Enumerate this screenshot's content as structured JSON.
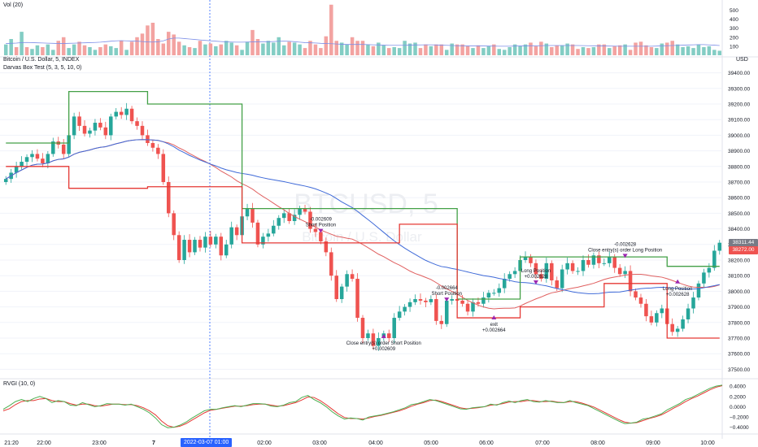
{
  "panes": {
    "volume_title": "Vol (20)",
    "main_title": "Bitcoin / U.S. Dollar, 5, INDEX",
    "study_title": "Darvas Box Test (5, 3, 5, 10, 0)",
    "rvgi_title": "RVGI (10, 0)",
    "currency": "USD"
  },
  "watermark": {
    "symbol": "BTCUSD, 5",
    "name": "Bitcoin / U.S. Dollar"
  },
  "time_axis": {
    "labels": [
      "21:20",
      "22:00",
      "23:00",
      "7",
      "02:00",
      "03:00",
      "04:00",
      "05:00",
      "06:00",
      "07:00",
      "08:00",
      "09:00",
      "10:00"
    ],
    "crosshair_label": "2022-03-07   01:00"
  },
  "price_axis": {
    "ticks": [
      "39400.00",
      "39300.00",
      "39200.00",
      "39100.00",
      "39000.00",
      "38900.00",
      "38800.00",
      "38700.00",
      "38600.00",
      "38500.00",
      "38400.00",
      "38300.00",
      "38200.00",
      "38100.00",
      "38000.00",
      "37900.00",
      "37800.00",
      "37700.00",
      "37600.00",
      "37500.00"
    ],
    "badge_red": "38272.00",
    "badge_gray": "38311.44"
  },
  "volume_axis": {
    "ticks": [
      "500",
      "400",
      "300",
      "200",
      "100"
    ]
  },
  "rvgi_axis": {
    "ticks": [
      "0.4000",
      "0.2000",
      "0.0000",
      "−0.2000",
      "−0.4000"
    ]
  },
  "colors": {
    "up": "#26a69a",
    "down": "#ef5350",
    "vol_up": "#83cdc4",
    "vol_down": "#f3a3a1",
    "box_top": "#43a047",
    "box_bottom": "#e53935",
    "ma_blue": "#3f6ad8",
    "ma_red": "#e06060",
    "rvgi_green": "#4caf50",
    "rvgi_red": "#e53935",
    "crosshair": "#2962ff",
    "signal_marker": "#9c27b0",
    "badge_gray": "#787b86"
  },
  "chart_data": [
    {
      "type": "candlestick",
      "title": "Bitcoin / U.S. Dollar, 5, INDEX",
      "ylim": [
        37450,
        39450
      ],
      "close_series": [
        38720,
        38760,
        38800,
        38830,
        38860,
        38880,
        38850,
        38820,
        38880,
        38960,
        38940,
        38880,
        39000,
        39120,
        39060,
        39010,
        39030,
        39080,
        39050,
        39000,
        39120,
        39150,
        39130,
        39170,
        39090,
        39060,
        39000,
        38950,
        38920,
        38880,
        38700,
        38500,
        38360,
        38200,
        38330,
        38250,
        38330,
        38280,
        38350,
        38300,
        38350,
        38230,
        38300,
        38410,
        38360,
        38480,
        38530,
        38440,
        38300,
        38350,
        38370,
        38420,
        38470,
        38500,
        38450,
        38490,
        38530,
        38510,
        38400,
        38380,
        38320,
        38250,
        38100,
        37950,
        38030,
        38110,
        38080,
        37830,
        37700,
        37730,
        37650,
        37700,
        37730,
        37700,
        37830,
        37870,
        37900,
        37930,
        37950,
        37940,
        37930,
        37950,
        37810,
        37790,
        37940,
        37950,
        37940,
        37920,
        37870,
        37930,
        37920,
        37960,
        37990,
        37990,
        38020,
        38080,
        38110,
        38130,
        38200,
        38220,
        38180,
        38110,
        38080,
        38180,
        38070,
        38020,
        38140,
        38180,
        38130,
        38130,
        38200,
        38170,
        38230,
        38180,
        38180,
        38220,
        38150,
        38110,
        38130,
        38000,
        37960,
        37920,
        37840,
        37800,
        37860,
        37890,
        37790,
        37740,
        37760,
        37820,
        37890,
        37960,
        38050,
        38120,
        38150,
        38260,
        38311
      ]
    },
    {
      "type": "bar",
      "title": "Vol (20)",
      "ylim": [
        0,
        540
      ],
      "values": [
        120,
        180,
        90,
        260,
        90,
        70,
        110,
        90,
        120,
        60,
        160,
        200,
        80,
        120,
        150,
        110,
        90,
        60,
        90,
        120,
        100,
        80,
        160,
        60,
        150,
        200,
        240,
        330,
        360,
        180,
        130,
        260,
        230,
        150,
        110,
        90,
        80,
        160,
        120,
        130,
        100,
        120,
        160,
        140,
        110,
        60,
        150,
        280,
        180,
        130,
        160,
        140,
        200,
        110,
        150,
        140,
        120,
        80,
        160,
        120,
        80,
        210,
        560,
        160,
        140,
        120,
        200,
        160,
        160,
        120,
        100,
        140,
        110,
        80,
        90,
        80,
        160,
        130,
        140,
        80,
        120,
        100,
        120,
        120,
        60,
        130,
        120,
        120,
        100,
        80,
        110,
        80,
        100,
        120,
        70,
        60,
        90,
        120,
        100,
        120,
        140,
        100,
        150,
        130,
        90,
        110,
        110,
        130,
        120,
        70,
        90,
        80,
        90,
        120,
        120,
        80,
        100,
        110,
        120,
        60,
        140,
        150,
        110,
        90,
        80,
        130,
        140,
        160,
        120,
        90,
        100,
        80,
        120,
        90,
        100,
        60,
        50
      ],
      "up": [
        1,
        1,
        0,
        1,
        0,
        1,
        1,
        0,
        1,
        1,
        0,
        0,
        1,
        1,
        0,
        0,
        1,
        1,
        0,
        0,
        1,
        1,
        0,
        1,
        0,
        0,
        0,
        0,
        0,
        0,
        0,
        0,
        0,
        0,
        1,
        0,
        1,
        0,
        1,
        0,
        1,
        0,
        1,
        1,
        0,
        1,
        1,
        0,
        0,
        1,
        1,
        1,
        1,
        1,
        0,
        1,
        1,
        0,
        0,
        0,
        0,
        0,
        0,
        0,
        1,
        1,
        0,
        0,
        0,
        1,
        0,
        1,
        1,
        0,
        1,
        1,
        1,
        1,
        1,
        0,
        0,
        1,
        0,
        0,
        1,
        1,
        0,
        0,
        0,
        1,
        0,
        1,
        1,
        0,
        1,
        1,
        1,
        1,
        1,
        1,
        0,
        0,
        0,
        1,
        0,
        0,
        1,
        1,
        0,
        0,
        1,
        0,
        1,
        0,
        0,
        1,
        0,
        0,
        1,
        0,
        0,
        0,
        0,
        0,
        1,
        1,
        0,
        0,
        1,
        1,
        1,
        1,
        1,
        1,
        1,
        1,
        1
      ],
      "ma_values": [
        130,
        132,
        135,
        140,
        142,
        140,
        138,
        136,
        134,
        132,
        130,
        130,
        132,
        134,
        136,
        138,
        140,
        142,
        145,
        150,
        156,
        160,
        162,
        160,
        158,
        156,
        152,
        148,
        146,
        150,
        160,
        180,
        190,
        190,
        185,
        180,
        175,
        170,
        165,
        160,
        156,
        152,
        148,
        146,
        145,
        145,
        146,
        148,
        150,
        150,
        150,
        152,
        155,
        156,
        155,
        150,
        145,
        140,
        138,
        136,
        132,
        130,
        128,
        125,
        122,
        120,
        120,
        120,
        120,
        118,
        116,
        114,
        112,
        110,
        110,
        110,
        110,
        112,
        114,
        115,
        116,
        116,
        114,
        112,
        110,
        108,
        106,
        105,
        104,
        104,
        104,
        103,
        102,
        101,
        100,
        100,
        100,
        102,
        104,
        104,
        105,
        105,
        106,
        108,
        108,
        108,
        108,
        108,
        108,
        108,
        107,
        106,
        105,
        104,
        103,
        102,
        101,
        100,
        100,
        100,
        100,
        100,
        100,
        100,
        102,
        104,
        106,
        108,
        110,
        112,
        114,
        116,
        118,
        118,
        115,
        112,
        108
      ]
    },
    {
      "type": "line",
      "title": "RVGI (10, 0)",
      "ylim": [
        -0.5,
        0.45
      ],
      "series": [
        {
          "name": "RVGI",
          "values": [
            -0.05,
            0.02,
            0.1,
            0.14,
            0.1,
            0.16,
            0.2,
            0.16,
            0.08,
            0.12,
            0.1,
            0.03,
            0.02,
            0.08,
            0.04,
            0.0,
            0.02,
            0.06,
            0.05,
            0.05,
            0.03,
            0.05,
            0.0,
            -0.05,
            -0.12,
            -0.22,
            -0.35,
            -0.41,
            -0.4,
            -0.36,
            -0.3,
            -0.22,
            -0.15,
            -0.08,
            -0.05,
            -0.05,
            -0.02,
            0.0,
            0.02,
            0.0,
            0.03,
            0.06,
            0.06,
            0.05,
            0.01,
            0.0,
            0.03,
            0.08,
            0.1,
            0.18,
            0.22,
            0.14,
            0.08,
            0.0,
            -0.1,
            -0.18,
            -0.24,
            -0.22,
            -0.23,
            -0.26,
            -0.2,
            -0.18,
            -0.16,
            -0.13,
            -0.1,
            -0.06,
            -0.02,
            0.04,
            0.06,
            0.1,
            0.14,
            0.12,
            0.08,
            0.04,
            0.0,
            -0.04,
            -0.05,
            -0.02,
            -0.01,
            0.0,
            0.05,
            0.03,
            0.08,
            0.11,
            0.08,
            0.12,
            0.14,
            0.1,
            0.09,
            0.12,
            0.1,
            0.08,
            0.08,
            0.12,
            0.08,
            0.05,
            0.02,
            -0.04,
            -0.1,
            -0.16,
            -0.22,
            -0.28,
            -0.33,
            -0.32,
            -0.3,
            -0.24,
            -0.22,
            -0.18,
            -0.14,
            -0.06,
            0.0,
            0.06,
            0.14,
            0.18,
            0.24,
            0.3,
            0.36,
            0.4,
            0.42
          ]
        },
        {
          "name": "Signal",
          "values": [
            -0.08,
            -0.04,
            0.04,
            0.1,
            0.12,
            0.12,
            0.15,
            0.16,
            0.12,
            0.1,
            0.1,
            0.06,
            0.03,
            0.05,
            0.05,
            0.02,
            0.01,
            0.03,
            0.05,
            0.05,
            0.04,
            0.04,
            0.02,
            -0.02,
            -0.08,
            -0.16,
            -0.28,
            -0.37,
            -0.4,
            -0.38,
            -0.33,
            -0.26,
            -0.19,
            -0.12,
            -0.07,
            -0.05,
            -0.03,
            -0.01,
            0.01,
            0.01,
            0.02,
            0.04,
            0.05,
            0.05,
            0.03,
            0.01,
            0.02,
            0.05,
            0.08,
            0.13,
            0.19,
            0.18,
            0.12,
            0.04,
            -0.05,
            -0.14,
            -0.21,
            -0.23,
            -0.23,
            -0.24,
            -0.22,
            -0.19,
            -0.17,
            -0.14,
            -0.11,
            -0.08,
            -0.04,
            0.01,
            0.05,
            0.08,
            0.12,
            0.13,
            0.1,
            0.06,
            0.02,
            -0.02,
            -0.04,
            -0.03,
            -0.02,
            0.0,
            0.03,
            0.04,
            0.06,
            0.09,
            0.1,
            0.1,
            0.12,
            0.12,
            0.1,
            0.1,
            0.11,
            0.09,
            0.08,
            0.1,
            0.1,
            0.07,
            0.03,
            -0.01,
            -0.07,
            -0.13,
            -0.19,
            -0.25,
            -0.3,
            -0.32,
            -0.31,
            -0.27,
            -0.23,
            -0.2,
            -0.16,
            -0.1,
            -0.03,
            0.03,
            0.1,
            0.16,
            0.21,
            0.27,
            0.33,
            0.38,
            0.41
          ]
        }
      ]
    }
  ],
  "overlays": {
    "darvas_top": [
      [
        0,
        38950
      ],
      [
        50,
        38950
      ],
      [
        50,
        39190
      ],
      [
        110,
        39190
      ],
      [
        110,
        38860
      ],
      [
        160,
        38860
      ],
      [
        160,
        38860
      ],
      [
        160,
        38660
      ],
      [
        225,
        38660
      ],
      [
        225,
        38460
      ],
      [
        280,
        38460
      ],
      [
        280,
        38460
      ]
    ],
    "annotations": [
      {
        "text": "-0.002609",
        "lines": [
          "-0.002609",
          "Short Position"
        ]
      },
      {
        "text": "Close entry(s) order Short Position",
        "lines": [
          "Close entry(s) order Short Position",
          "+0.002609"
        ]
      },
      {
        "text": "-0.002664",
        "lines": [
          "-0.002664",
          "Short Position"
        ]
      },
      {
        "text": "exit",
        "lines": [
          "exit",
          "+0.002664"
        ]
      },
      {
        "text": "Long Position",
        "lines": [
          "Long Position",
          "+0.002628"
        ]
      },
      {
        "text": "-0.002628",
        "lines": [
          "-0.002628",
          "Close entry(s) order Long Position"
        ]
      },
      {
        "text": "Long Position 2",
        "lines": [
          "Long Position",
          "+0.002628"
        ]
      }
    ]
  }
}
